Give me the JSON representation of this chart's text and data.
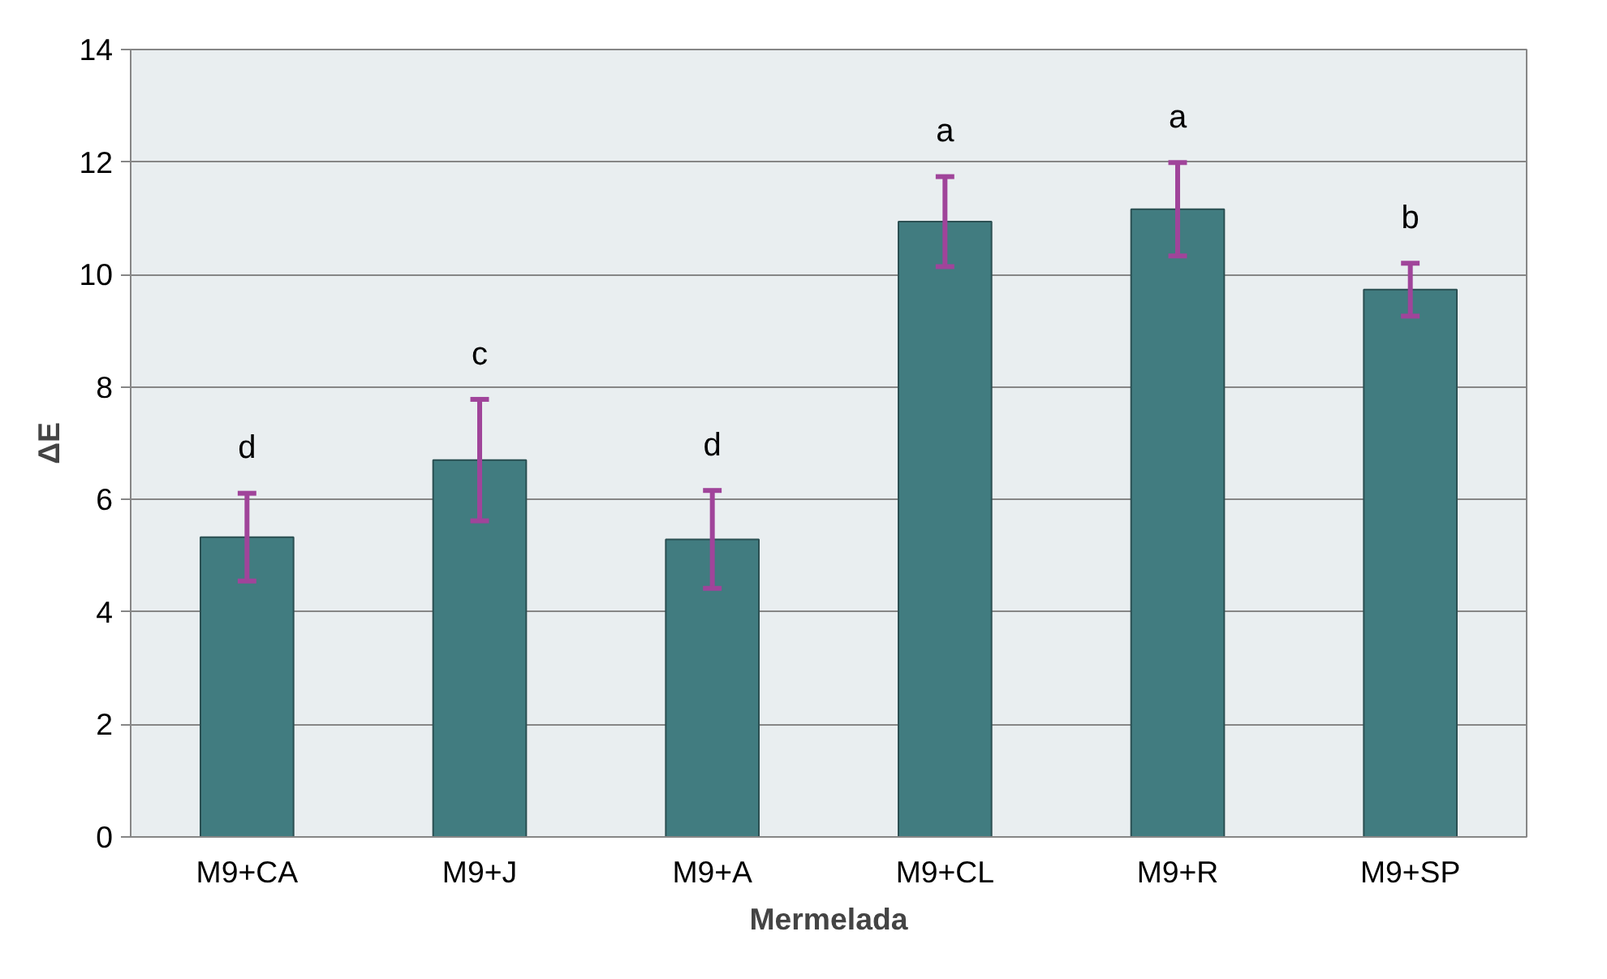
{
  "chart_data": {
    "type": "bar",
    "xlabel": "Mermelada",
    "ylabel": "ΔE",
    "categories": [
      "M9+CA",
      "M9+J",
      "M9+A",
      "M9+CL",
      "M9+R",
      "M9+SP"
    ],
    "values": [
      5.33,
      6.7,
      5.29,
      10.94,
      11.16,
      9.73
    ],
    "errors": [
      0.78,
      1.08,
      0.87,
      0.8,
      0.83,
      0.47
    ],
    "color": "#417c80",
    "ylim": [
      0,
      14
    ],
    "yticks": [
      0,
      2,
      4,
      6,
      8,
      10,
      12,
      14
    ],
    "grid": "y",
    "annotations": [
      "d",
      "c",
      "d",
      "a",
      "a",
      "b"
    ]
  }
}
